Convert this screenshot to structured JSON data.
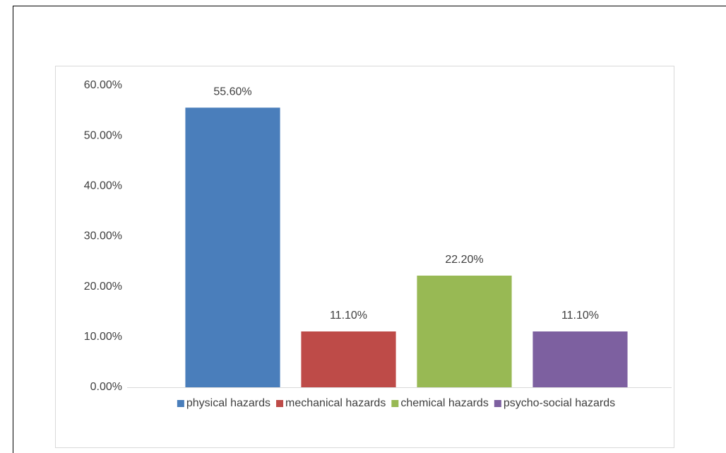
{
  "chart_data": {
    "type": "bar",
    "categories": [
      null
    ],
    "series": [
      {
        "name": "physical hazards",
        "color": "#4a7ebb",
        "values": [
          55.6
        ],
        "value_labels": [
          "55.60%"
        ]
      },
      {
        "name": "mechanical hazards",
        "color": "#be4b48",
        "values": [
          11.1
        ],
        "value_labels": [
          "11.10%"
        ]
      },
      {
        "name": "chemical hazards",
        "color": "#98b954",
        "values": [
          22.2
        ],
        "value_labels": [
          "22.20%"
        ]
      },
      {
        "name": "psycho-social hazards",
        "color": "#7d60a0",
        "values": [
          11.1
        ],
        "value_labels": [
          "11.10%"
        ]
      }
    ],
    "ylim": [
      0,
      60
    ],
    "yticks": [
      {
        "value": 0,
        "label": "0.00%"
      },
      {
        "value": 10,
        "label": "10.00%"
      },
      {
        "value": 20,
        "label": "20.00%"
      },
      {
        "value": 30,
        "label": "30.00%"
      },
      {
        "value": 40,
        "label": "40.00%"
      },
      {
        "value": 50,
        "label": "50.00%"
      },
      {
        "value": 60,
        "label": "60.00%"
      }
    ],
    "grid": false,
    "legend": "bottom"
  }
}
